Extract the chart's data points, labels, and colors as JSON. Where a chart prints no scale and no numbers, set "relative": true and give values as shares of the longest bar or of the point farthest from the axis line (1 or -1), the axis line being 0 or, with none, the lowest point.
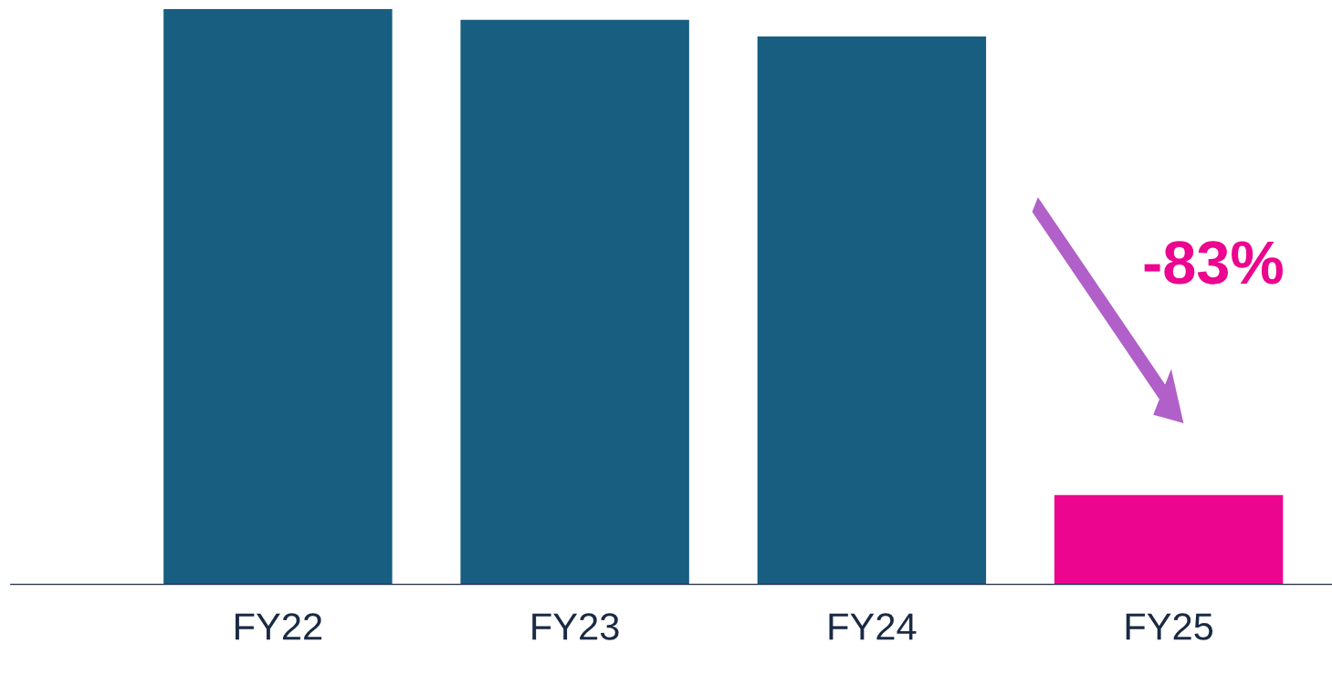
{
  "chart_data": {
    "type": "bar",
    "relative": true,
    "categories": [
      "FY22",
      "FY23",
      "FY24",
      "FY25"
    ],
    "values": [
      1,
      0.981,
      0.952,
      0.155
    ],
    "colors": [
      "#175e80",
      "#175e80",
      "#175e80",
      "#ec058e"
    ],
    "annotations": [
      "-83%"
    ],
    "grid": false,
    "legend": false
  }
}
